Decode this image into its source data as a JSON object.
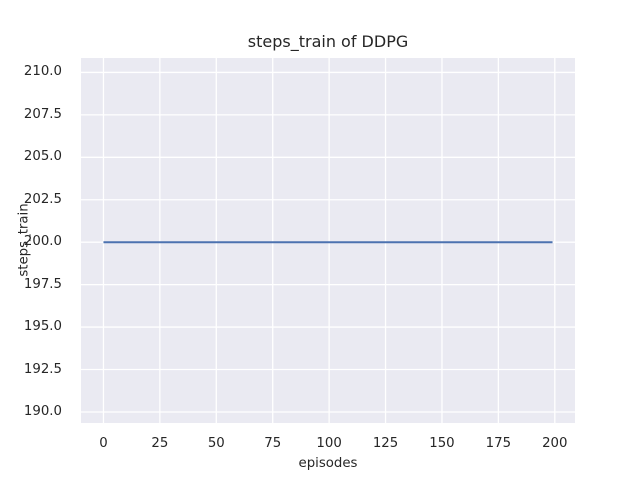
{
  "chart_data": {
    "type": "line",
    "title": "steps_train of DDPG",
    "xlabel": "episodes",
    "ylabel": "steps_train",
    "xlim": [
      -9.95,
      208.95
    ],
    "ylim": [
      189.35,
      210.85
    ],
    "xticks": [
      0,
      25,
      50,
      75,
      100,
      125,
      150,
      175,
      200
    ],
    "xticklabels": [
      "0",
      "25",
      "50",
      "75",
      "100",
      "125",
      "150",
      "175",
      "200"
    ],
    "yticks": [
      190.0,
      192.5,
      195.0,
      197.5,
      200.0,
      202.5,
      205.0,
      207.5,
      210.0
    ],
    "yticklabels": [
      "190.0",
      "192.5",
      "195.0",
      "197.5",
      "200.0",
      "202.5",
      "205.0",
      "207.5",
      "210.0"
    ],
    "grid": true,
    "legend": null,
    "series": [
      {
        "name": "steps_train",
        "color": "#4C72B0",
        "x": [
          0,
          199
        ],
        "y": [
          200,
          200
        ]
      }
    ],
    "style": {
      "figure_background": "#FFFFFF",
      "plot_background": "#EAEAF2",
      "grid_color": "#FFFFFF",
      "text_color": "#262626",
      "line_width": 2
    }
  }
}
